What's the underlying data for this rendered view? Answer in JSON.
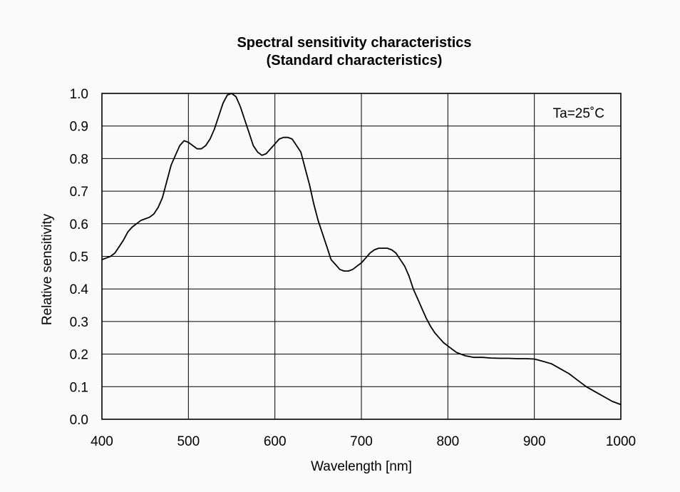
{
  "chart_data": {
    "type": "line",
    "title": "Spectral sensitivity characteristics",
    "subtitle": "(Standard characteristics)",
    "xlabel": "Wavelength [nm]",
    "ylabel": "Relative sensitivity",
    "xlim": [
      400,
      1000
    ],
    "ylim": [
      0.0,
      1.0
    ],
    "grid": true,
    "annotation": "Ta=25˚C",
    "x_ticks": [
      "400",
      "500",
      "600",
      "700",
      "800",
      "900",
      "1000"
    ],
    "y_ticks": [
      "0.0",
      "0.1",
      "0.2",
      "0.3",
      "0.4",
      "0.5",
      "0.6",
      "0.7",
      "0.8",
      "0.9",
      "1.0"
    ],
    "x_tick_values": [
      400,
      500,
      600,
      700,
      800,
      900,
      1000
    ],
    "y_tick_values": [
      0.0,
      0.1,
      0.2,
      0.3,
      0.4,
      0.5,
      0.6,
      0.7,
      0.8,
      0.9,
      1.0
    ],
    "series": [
      {
        "x": [
          400,
          405,
          410,
          415,
          420,
          425,
          430,
          435,
          440,
          445,
          450,
          455,
          460,
          465,
          470,
          475,
          480,
          485,
          490,
          495,
          500,
          505,
          510,
          515,
          520,
          525,
          530,
          535,
          540,
          545,
          550,
          555,
          560,
          565,
          570,
          575,
          580,
          585,
          590,
          595,
          600,
          605,
          610,
          615,
          620,
          625,
          630,
          635,
          640,
          645,
          650,
          655,
          660,
          665,
          670,
          675,
          680,
          685,
          690,
          695,
          700,
          705,
          710,
          715,
          720,
          725,
          730,
          735,
          740,
          745,
          750,
          755,
          760,
          765,
          770,
          775,
          780,
          785,
          790,
          795,
          800,
          810,
          820,
          830,
          840,
          850,
          860,
          870,
          880,
          890,
          900,
          910,
          920,
          930,
          940,
          950,
          960,
          970,
          980,
          990,
          1000
        ],
        "y": [
          0.49,
          0.495,
          0.5,
          0.51,
          0.53,
          0.55,
          0.575,
          0.59,
          0.6,
          0.61,
          0.615,
          0.62,
          0.63,
          0.65,
          0.68,
          0.73,
          0.78,
          0.81,
          0.84,
          0.855,
          0.85,
          0.84,
          0.83,
          0.83,
          0.84,
          0.86,
          0.89,
          0.93,
          0.97,
          0.995,
          1.0,
          0.99,
          0.96,
          0.92,
          0.88,
          0.84,
          0.82,
          0.81,
          0.815,
          0.83,
          0.845,
          0.86,
          0.865,
          0.865,
          0.86,
          0.84,
          0.82,
          0.77,
          0.72,
          0.66,
          0.61,
          0.57,
          0.53,
          0.49,
          0.475,
          0.46,
          0.455,
          0.455,
          0.46,
          0.47,
          0.48,
          0.495,
          0.51,
          0.52,
          0.525,
          0.525,
          0.525,
          0.52,
          0.51,
          0.49,
          0.47,
          0.44,
          0.4,
          0.37,
          0.34,
          0.31,
          0.285,
          0.265,
          0.25,
          0.235,
          0.225,
          0.205,
          0.195,
          0.19,
          0.19,
          0.188,
          0.187,
          0.187,
          0.186,
          0.186,
          0.185,
          0.178,
          0.17,
          0.155,
          0.14,
          0.12,
          0.1,
          0.085,
          0.07,
          0.055,
          0.045
        ]
      }
    ]
  }
}
